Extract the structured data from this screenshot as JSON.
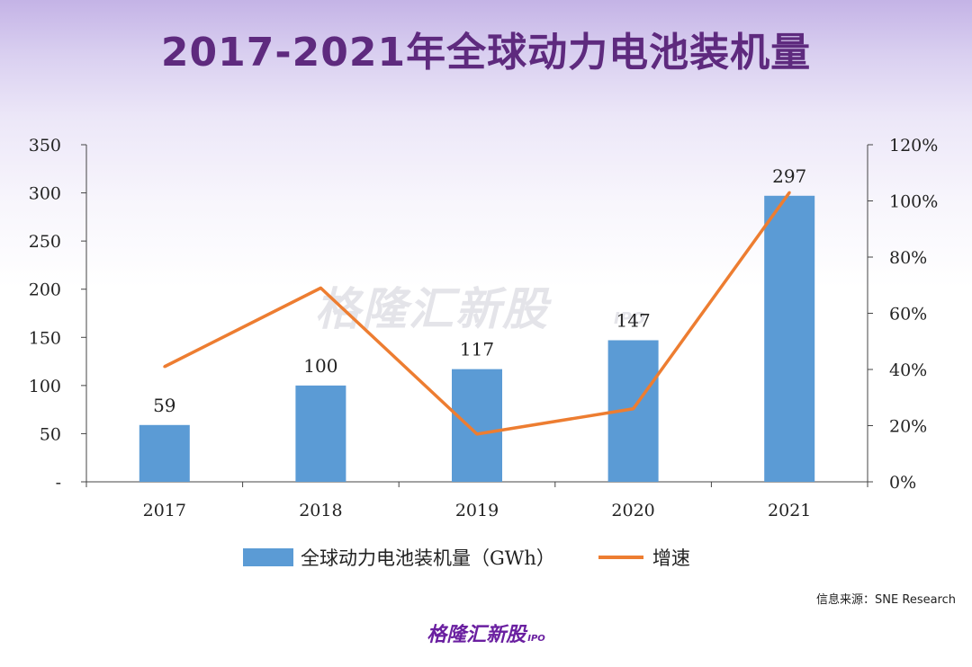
{
  "title": "2017-2021年全球动力电池装机量",
  "watermark": "格隆汇新股",
  "watermark_sub": "IPO",
  "source": "信息来源：SNE Research",
  "logo": {
    "text": "格隆汇新股",
    "sub": "IPO"
  },
  "chart_data": {
    "type": "bar",
    "categories": [
      "2017",
      "2018",
      "2019",
      "2020",
      "2021"
    ],
    "series": [
      {
        "name": "全球动力电池装机量（GWh）",
        "type": "bar",
        "axis": "left",
        "color": "#5b9bd5",
        "values": [
          59,
          100,
          117,
          147,
          297
        ],
        "labels": [
          "59",
          "100",
          "117",
          "147",
          "297"
        ]
      },
      {
        "name": "增速",
        "type": "line",
        "axis": "right",
        "color": "#ed7d31",
        "values": [
          41,
          69,
          17,
          26,
          103
        ]
      }
    ],
    "y_left": {
      "min": 0,
      "max": 350,
      "ticks": [
        "-",
        "50",
        "100",
        "150",
        "200",
        "250",
        "300",
        "350"
      ]
    },
    "y_right": {
      "min": 0,
      "max": 120,
      "ticks": [
        "0%",
        "20%",
        "40%",
        "60%",
        "80%",
        "100%",
        "120%"
      ]
    },
    "grid": false,
    "legend_position": "bottom"
  }
}
